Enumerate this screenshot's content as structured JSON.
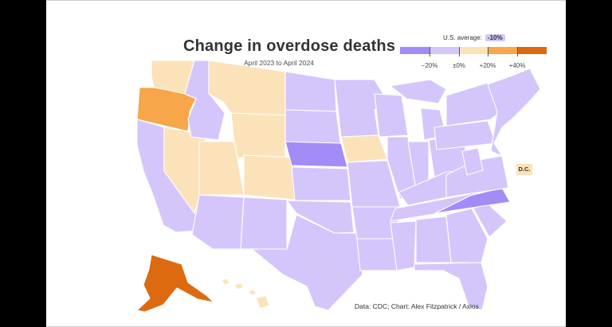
{
  "title": "Change in overdose deaths",
  "subtitle": "April 2023 to April 2024",
  "legend": {
    "heading": "U.S. average:",
    "average_value": "-10%",
    "colors": [
      "#a48cf7",
      "#d4c6fb",
      "#fbe2b9",
      "#f7a64a",
      "#dd6a11"
    ],
    "ticks": [
      "−20%",
      "±0%",
      "+20%",
      "+40%"
    ]
  },
  "colors": {
    "strong_decrease": "#a48cf7",
    "moderate_decrease": "#d4c6fb",
    "small_increase": "#fbe2b9",
    "increase": "#f7a64a",
    "large_increase": "#dd6a11",
    "border": "#ffffff",
    "letterbox": "#000000"
  },
  "dc_label": "D.C.",
  "credit": "Data: CDC; Chart: Alex Fitzpatrick / Axios",
  "states": [
    {
      "id": "WA",
      "category": "small_increase"
    },
    {
      "id": "OR",
      "category": "increase"
    },
    {
      "id": "CA",
      "category": "moderate_decrease"
    },
    {
      "id": "NV",
      "category": "small_increase"
    },
    {
      "id": "ID",
      "category": "moderate_decrease"
    },
    {
      "id": "MT",
      "category": "small_increase"
    },
    {
      "id": "WY",
      "category": "small_increase"
    },
    {
      "id": "UT",
      "category": "small_increase"
    },
    {
      "id": "CO",
      "category": "small_increase"
    },
    {
      "id": "AZ",
      "category": "moderate_decrease"
    },
    {
      "id": "NM",
      "category": "moderate_decrease"
    },
    {
      "id": "ND",
      "category": "moderate_decrease"
    },
    {
      "id": "SD",
      "category": "moderate_decrease"
    },
    {
      "id": "NE",
      "category": "strong_decrease"
    },
    {
      "id": "KS",
      "category": "moderate_decrease"
    },
    {
      "id": "OK",
      "category": "moderate_decrease"
    },
    {
      "id": "TX",
      "category": "moderate_decrease"
    },
    {
      "id": "MN",
      "category": "moderate_decrease"
    },
    {
      "id": "IA",
      "category": "small_increase"
    },
    {
      "id": "MO",
      "category": "moderate_decrease"
    },
    {
      "id": "AR",
      "category": "moderate_decrease"
    },
    {
      "id": "LA",
      "category": "moderate_decrease"
    },
    {
      "id": "WI",
      "category": "moderate_decrease"
    },
    {
      "id": "IL",
      "category": "moderate_decrease"
    },
    {
      "id": "MI",
      "category": "moderate_decrease"
    },
    {
      "id": "IN",
      "category": "moderate_decrease"
    },
    {
      "id": "OH",
      "category": "moderate_decrease"
    },
    {
      "id": "KY",
      "category": "moderate_decrease"
    },
    {
      "id": "TN",
      "category": "moderate_decrease"
    },
    {
      "id": "MS",
      "category": "moderate_decrease"
    },
    {
      "id": "AL",
      "category": "moderate_decrease"
    },
    {
      "id": "GA",
      "category": "moderate_decrease"
    },
    {
      "id": "FL",
      "category": "moderate_decrease"
    },
    {
      "id": "SC",
      "category": "moderate_decrease"
    },
    {
      "id": "NC",
      "category": "strong_decrease"
    },
    {
      "id": "VA",
      "category": "moderate_decrease"
    },
    {
      "id": "WV",
      "category": "moderate_decrease"
    },
    {
      "id": "PA",
      "category": "moderate_decrease"
    },
    {
      "id": "NY",
      "category": "moderate_decrease"
    },
    {
      "id": "NE_REGION",
      "category": "moderate_decrease"
    },
    {
      "id": "AK",
      "category": "large_increase"
    },
    {
      "id": "HI",
      "category": "small_increase"
    },
    {
      "id": "DC",
      "category": "small_increase"
    }
  ]
}
